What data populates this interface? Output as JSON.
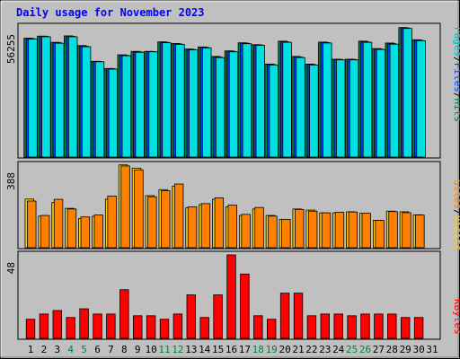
{
  "chart_data": [
    {
      "type": "bar",
      "title": "Daily usage for November 2023",
      "ylabel_parts": [
        "Pages",
        "Files",
        "Hits"
      ],
      "ylabel_colors": [
        "#00c0c0",
        "#0040ff",
        "#008040"
      ],
      "ymax_label": "56255",
      "ylim": [
        0,
        56255
      ],
      "categories": [
        "1",
        "2",
        "3",
        "4",
        "5",
        "6",
        "7",
        "8",
        "9",
        "10",
        "11",
        "12",
        "13",
        "14",
        "15",
        "16",
        "17",
        "18",
        "19",
        "20",
        "21",
        "22",
        "23",
        "24",
        "25",
        "26",
        "27",
        "28",
        "29",
        "30",
        "31"
      ],
      "series": [
        {
          "name": "Hits",
          "color": "#008040",
          "values": [
            51400,
            52300,
            49600,
            52400,
            48200,
            41400,
            38300,
            44200,
            45700,
            45700,
            49800,
            49100,
            46700,
            47600,
            43500,
            45900,
            49400,
            48600,
            40200,
            50100,
            43500,
            40200,
            49700,
            42300,
            42300,
            50100,
            46900,
            49300,
            56000,
            50700,
            null
          ]
        },
        {
          "name": "Files",
          "color": "#0040ff",
          "values": [
            51200,
            52200,
            49400,
            52200,
            47900,
            41300,
            38200,
            44000,
            45500,
            45600,
            49600,
            48900,
            46500,
            47400,
            43200,
            45700,
            49200,
            48500,
            40000,
            49800,
            43200,
            40000,
            49500,
            42200,
            42200,
            49800,
            46700,
            49000,
            55800,
            50500,
            null
          ]
        },
        {
          "name": "Pages",
          "color": "#00e0e0",
          "values": [
            51000,
            52000,
            49200,
            52000,
            47700,
            41200,
            38000,
            43800,
            45300,
            45500,
            49400,
            48700,
            46300,
            47200,
            43000,
            45500,
            49000,
            48300,
            39800,
            49600,
            43000,
            39800,
            49300,
            42000,
            42000,
            49600,
            46500,
            48800,
            55600,
            50300,
            null
          ]
        }
      ]
    },
    {
      "type": "bar",
      "ylabel_parts": [
        "Sites",
        "Visits"
      ],
      "ylabel_colors": [
        "#ff8000",
        "#ffd000"
      ],
      "ymax_label": "388",
      "ylim": [
        0,
        388
      ],
      "categories": [
        "1",
        "2",
        "3",
        "4",
        "5",
        "6",
        "7",
        "8",
        "9",
        "10",
        "11",
        "12",
        "13",
        "14",
        "15",
        "16",
        "17",
        "18",
        "19",
        "20",
        "21",
        "22",
        "23",
        "24",
        "25",
        "26",
        "27",
        "28",
        "29",
        "30",
        "31"
      ],
      "series": [
        {
          "name": "Visits",
          "color": "#ffd000",
          "values": [
            226,
            147,
            210,
            183,
            136,
            146,
            226,
            385,
            370,
            242,
            270,
            286,
            185,
            200,
            225,
            190,
            150,
            180,
            150,
            132,
            180,
            175,
            162,
            162,
            167,
            160,
            127,
            170,
            167,
            153,
            null
          ]
        },
        {
          "name": "Sites",
          "color": "#ff8000",
          "values": [
            217,
            150,
            225,
            180,
            143,
            152,
            240,
            380,
            362,
            237,
            265,
            296,
            190,
            205,
            232,
            198,
            155,
            187,
            147,
            132,
            178,
            170,
            162,
            165,
            166,
            160,
            127,
            168,
            163,
            152,
            null
          ]
        }
      ]
    },
    {
      "type": "bar",
      "ylabel_parts": [
        "KBytes"
      ],
      "ylabel_colors": [
        "#ff0000"
      ],
      "ymax_label": "48",
      "ylim": [
        0,
        48
      ],
      "categories": [
        "1",
        "2",
        "3",
        "4",
        "5",
        "6",
        "7",
        "8",
        "9",
        "10",
        "11",
        "12",
        "13",
        "14",
        "15",
        "16",
        "17",
        "18",
        "19",
        "20",
        "21",
        "22",
        "23",
        "24",
        "25",
        "26",
        "27",
        "28",
        "29",
        "30",
        "31"
      ],
      "weekend_categories": [
        "4",
        "5",
        "11",
        "12",
        "18",
        "19",
        "25",
        "26"
      ],
      "series": [
        {
          "name": "KBytes",
          "color": "#ff0000",
          "values": [
            11,
            14,
            16,
            12,
            17,
            14,
            14,
            28,
            13,
            13,
            11,
            14,
            25,
            12,
            25,
            48,
            37,
            13,
            11,
            26,
            26,
            13,
            14,
            14,
            13,
            14,
            14,
            14,
            12,
            12,
            null
          ]
        }
      ]
    }
  ]
}
